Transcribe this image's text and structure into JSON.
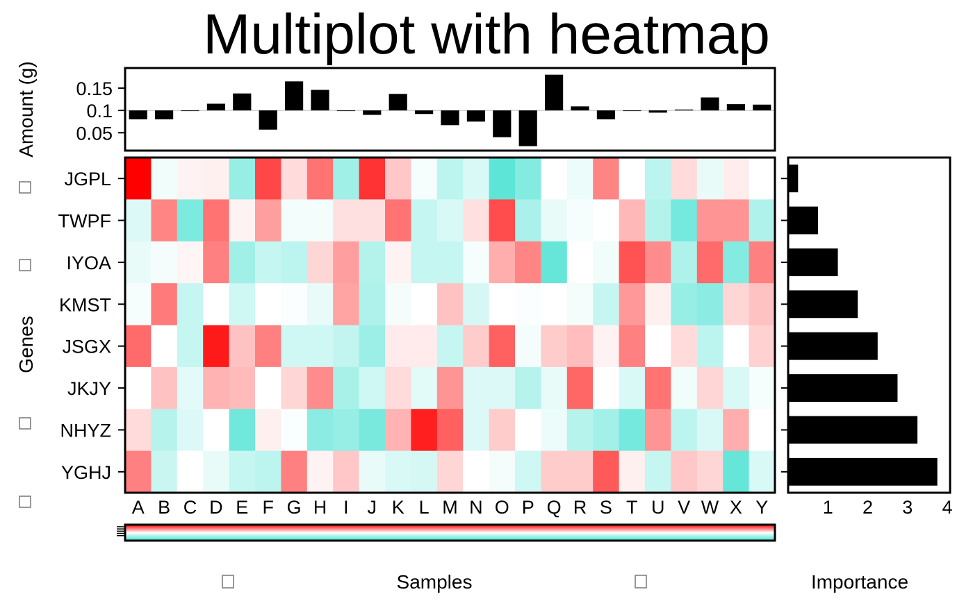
{
  "colors": {
    "low": "#40e0d0",
    "mid": "#ffffff",
    "high": "#ff0000",
    "bar": "#000000",
    "frame": "#000000"
  },
  "chart_data": [
    {
      "type": "bar",
      "title": "Multiplot with heatmap",
      "ylabel": "Amount (g)",
      "baseline": 0.1,
      "ylim": [
        0.01,
        0.195
      ],
      "yticks": [
        0.05,
        0.1,
        0.15
      ],
      "yticklabels": [
        "0.05",
        "0.1",
        "0.15"
      ],
      "categories": [
        "A",
        "B",
        "C",
        "D",
        "E",
        "F",
        "G",
        "H",
        "I",
        "J",
        "K",
        "L",
        "M",
        "N",
        "O",
        "P",
        "Q",
        "R",
        "S",
        "T",
        "U",
        "V",
        "W",
        "X",
        "Y"
      ],
      "values": [
        0.08,
        0.08,
        0.099,
        0.115,
        0.138,
        0.057,
        0.165,
        0.146,
        0.1,
        0.09,
        0.137,
        0.092,
        0.067,
        0.075,
        0.04,
        0.02,
        0.18,
        0.109,
        0.08,
        0.1,
        0.095,
        0.102,
        0.129,
        0.114,
        0.113
      ]
    },
    {
      "type": "heatmap",
      "xlabel": "Samples",
      "ylabel": "Genes",
      "x": [
        "A",
        "B",
        "C",
        "D",
        "E",
        "F",
        "G",
        "H",
        "I",
        "J",
        "K",
        "L",
        "M",
        "N",
        "O",
        "P",
        "Q",
        "R",
        "S",
        "T",
        "U",
        "V",
        "W",
        "X",
        "Y"
      ],
      "y": [
        "JGPL",
        "TWPF",
        "IYOA",
        "KMST",
        "JSGX",
        "JKJY",
        "NHYZ",
        "YGHJ"
      ],
      "scale": [
        -1,
        1
      ],
      "values": [
        [
          1.0,
          -0.08,
          0.05,
          0.06,
          -0.55,
          0.72,
          0.14,
          0.55,
          -0.5,
          0.8,
          0.22,
          -0.05,
          -0.35,
          -0.2,
          -0.85,
          -0.65,
          0.0,
          -0.1,
          0.48,
          0.0,
          -0.35,
          0.14,
          -0.12,
          0.07,
          0.0
        ],
        [
          -0.18,
          0.48,
          -0.68,
          0.55,
          0.05,
          0.38,
          -0.07,
          -0.07,
          0.12,
          0.12,
          0.55,
          -0.3,
          -0.2,
          0.12,
          0.7,
          -0.45,
          -0.12,
          -0.05,
          0.0,
          0.28,
          -0.4,
          -0.72,
          0.42,
          0.42,
          -0.42
        ],
        [
          -0.12,
          -0.06,
          0.04,
          0.5,
          -0.5,
          -0.3,
          -0.35,
          0.16,
          0.38,
          -0.4,
          0.05,
          -0.3,
          -0.3,
          -0.05,
          0.32,
          0.48,
          -0.8,
          0.0,
          -0.08,
          0.68,
          0.45,
          -0.42,
          0.58,
          -0.65,
          0.5
        ],
        [
          -0.05,
          0.52,
          -0.3,
          0.0,
          -0.25,
          0.0,
          -0.02,
          -0.12,
          0.36,
          -0.42,
          -0.06,
          0.0,
          0.24,
          -0.22,
          0.0,
          -0.02,
          0.0,
          -0.06,
          -0.3,
          0.4,
          0.06,
          -0.55,
          -0.6,
          0.16,
          0.24
        ],
        [
          0.58,
          0.0,
          -0.3,
          0.9,
          0.24,
          0.5,
          -0.25,
          -0.25,
          -0.32,
          -0.52,
          0.08,
          0.08,
          -0.3,
          0.2,
          0.62,
          -0.06,
          0.2,
          0.26,
          0.05,
          0.5,
          0.0,
          0.14,
          -0.35,
          0.0,
          0.18
        ],
        [
          0.0,
          0.24,
          -0.15,
          0.3,
          0.27,
          0.0,
          0.16,
          0.45,
          -0.46,
          -0.25,
          0.14,
          -0.15,
          0.42,
          -0.18,
          -0.18,
          -0.38,
          -0.12,
          0.6,
          0.0,
          -0.2,
          0.55,
          -0.08,
          0.16,
          -0.2,
          -0.05
        ],
        [
          0.14,
          -0.38,
          -0.18,
          0.0,
          -0.75,
          0.06,
          -0.03,
          -0.6,
          -0.55,
          -0.7,
          0.3,
          0.88,
          0.62,
          -0.18,
          0.2,
          0.0,
          -0.1,
          -0.38,
          -0.48,
          -0.72,
          0.42,
          -0.35,
          -0.2,
          0.32,
          0.0
        ],
        [
          0.5,
          -0.28,
          0.0,
          -0.12,
          -0.3,
          -0.35,
          0.5,
          0.05,
          0.22,
          -0.12,
          -0.2,
          -0.22,
          0.16,
          0.0,
          -0.06,
          -0.25,
          0.2,
          0.2,
          0.65,
          0.06,
          -0.3,
          0.22,
          0.16,
          -0.8,
          -0.2
        ]
      ]
    },
    {
      "type": "bar",
      "orientation": "horizontal",
      "xlabel": "Importance",
      "categories": [
        "JGPL",
        "TWPF",
        "IYOA",
        "KMST",
        "JSGX",
        "JKJY",
        "NHYZ",
        "YGHJ"
      ],
      "values": [
        0.25,
        0.75,
        1.25,
        1.75,
        2.25,
        2.75,
        3.25,
        3.75
      ],
      "xlim": [
        0,
        4.07
      ],
      "xticks": [
        1,
        2,
        3,
        4
      ],
      "xticklabels": [
        "1",
        "2",
        "3",
        "4"
      ]
    }
  ]
}
